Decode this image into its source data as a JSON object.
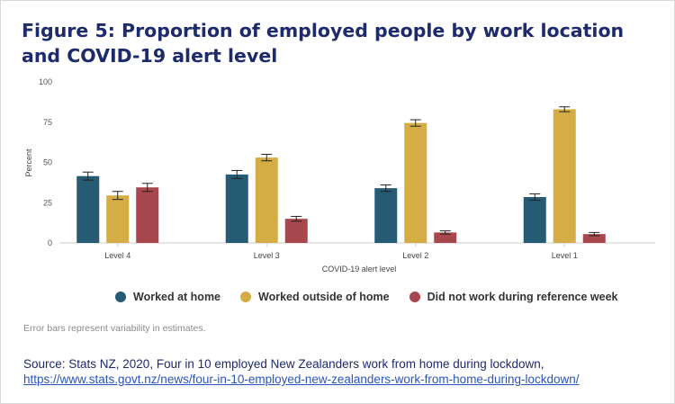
{
  "title": "Figure 5: Proportion of employed people by work location and COVID-19 alert level",
  "note": "Error bars represent variability in estimates.",
  "source_text": "Source: Stats NZ, 2020, Four in 10 employed New Zealanders work from home during lockdown,",
  "source_link": "https://www.stats.govt.nz/news/four-in-10-employed-new-zealanders-work-from-home-during-lockdown/",
  "chart_data": {
    "type": "bar",
    "xlabel": "COVID-19 alert level",
    "ylabel": "Percent",
    "ylim": [
      0,
      100
    ],
    "yticks": [
      0,
      25,
      50,
      75,
      100
    ],
    "grid": false,
    "legend_placement": "bottom",
    "categories": [
      "Level 4",
      "Level 3",
      "Level 2",
      "Level 1"
    ],
    "series": [
      {
        "name": "Worked at home",
        "color": "#255b73",
        "values": [
          41.5,
          42.5,
          34,
          28.5
        ],
        "error": [
          2.5,
          2.5,
          2,
          2
        ]
      },
      {
        "name": "Worked outside of home",
        "color": "#d4ae45",
        "values": [
          29.5,
          53,
          74.5,
          83
        ],
        "error": [
          2.5,
          2,
          2,
          1.5
        ]
      },
      {
        "name": "Did not work during reference week",
        "color": "#a8474d",
        "values": [
          34.5,
          15,
          6.5,
          5.5
        ],
        "error": [
          2.5,
          1.5,
          1,
          1
        ]
      }
    ]
  }
}
